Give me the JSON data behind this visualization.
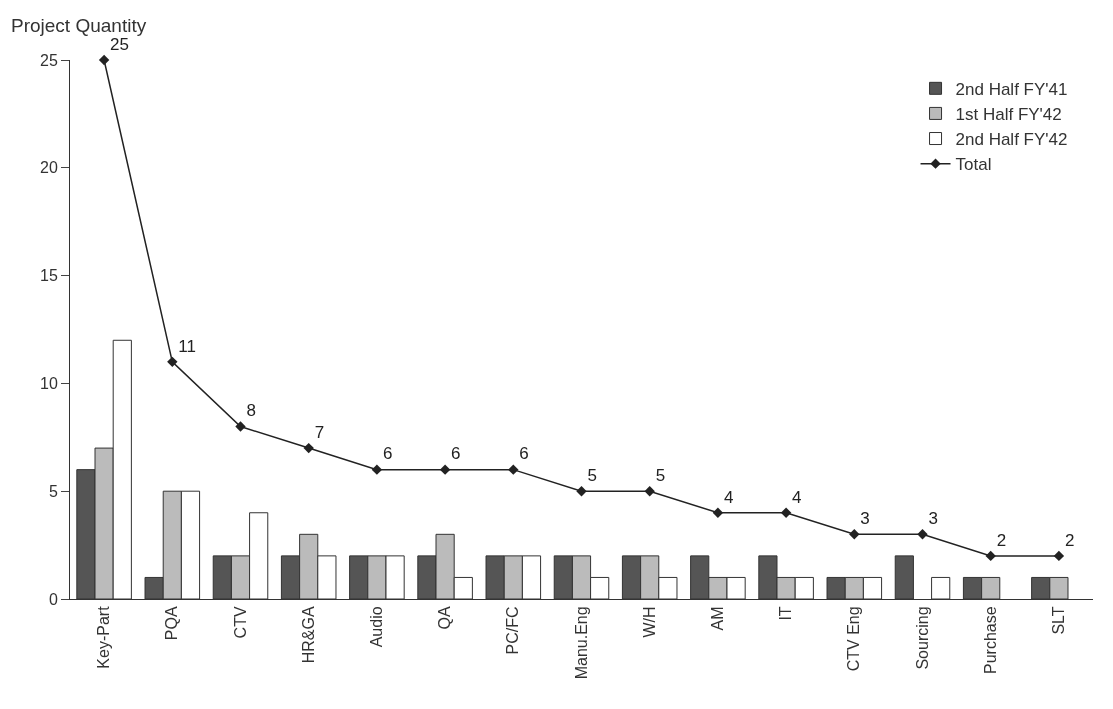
{
  "chart_data": {
    "type": "bar",
    "ylabel": "Project Quantity",
    "categories": [
      "Key-Part",
      "PQA",
      "CTV",
      "HR&GA",
      "Audio",
      "QA",
      "PC/FC",
      "Manu.Eng",
      "W/H",
      "AM",
      "IT",
      "CTV Eng",
      "Sourcing",
      "Purchase",
      "SLT"
    ],
    "series": [
      {
        "name": "2nd Half FY'41",
        "color": "#555555",
        "values": [
          6,
          1,
          2,
          2,
          2,
          2,
          2,
          2,
          2,
          2,
          2,
          1,
          2,
          1,
          1
        ]
      },
      {
        "name": "1st Half FY'42",
        "color": "#bbbbbb",
        "values": [
          7,
          5,
          2,
          3,
          2,
          3,
          2,
          2,
          2,
          1,
          1,
          1,
          null,
          1,
          1
        ]
      },
      {
        "name": "2nd Half FY'42",
        "color": "#ffffff",
        "values": [
          12,
          5,
          4,
          2,
          2,
          1,
          2,
          1,
          1,
          1,
          1,
          1,
          1,
          null,
          null
        ]
      },
      {
        "name": "Total",
        "type": "line",
        "color": "#222222",
        "marker": "diamond",
        "values": [
          25,
          11,
          8,
          7,
          6,
          6,
          6,
          5,
          5,
          4,
          4,
          3,
          3,
          2,
          2
        ],
        "value_labels": [
          "25",
          "11",
          "8",
          "7",
          "6",
          "6",
          "6",
          "5",
          "5",
          "4",
          "4",
          "3",
          "3",
          "2",
          "2"
        ]
      }
    ],
    "ylim": [
      0,
      25
    ],
    "yticks": [
      0,
      5,
      10,
      15,
      20,
      25
    ],
    "grid": false,
    "legend": "top right"
  }
}
